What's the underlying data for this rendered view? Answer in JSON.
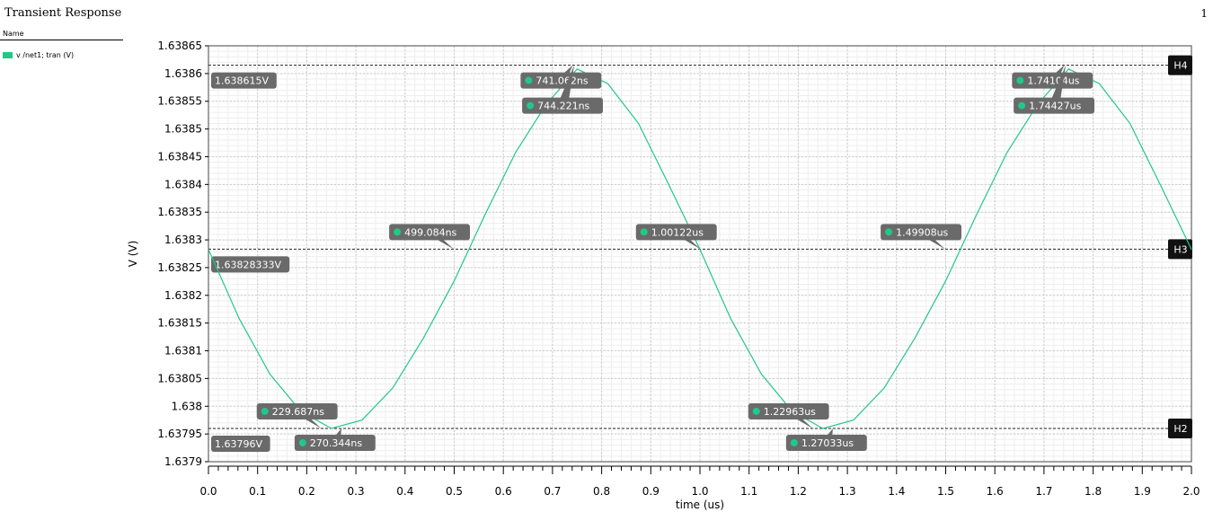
{
  "window": {
    "title": "Transient Response",
    "page_number": "1"
  },
  "legend": {
    "header": "Name",
    "entries": [
      {
        "label": "v /net1; tran (V)",
        "color": "#22c78a"
      }
    ]
  },
  "chart_data": {
    "type": "line",
    "xlabel": "time (us)",
    "ylabel": "V (V)",
    "xlim": [
      0.0,
      2.0
    ],
    "ylim": [
      1.6379,
      1.63865
    ],
    "x_ticks": [
      "0.0",
      "0.1",
      "0.2",
      "0.3",
      "0.4",
      "0.5",
      "0.6",
      "0.7",
      "0.8",
      "0.9",
      "1.0",
      "1.1",
      "1.2",
      "1.3",
      "1.4",
      "1.5",
      "1.6",
      "1.7",
      "1.8",
      "1.9",
      "2.0"
    ],
    "y_ticks": [
      "1.63865",
      "1.6386",
      "1.63855",
      "1.6385",
      "1.63845",
      "1.6384",
      "1.63835",
      "1.6383",
      "1.63825",
      "1.6382",
      "1.63815",
      "1.6381",
      "1.63805",
      "1.638",
      "1.63795",
      "1.6379"
    ],
    "grid": true,
    "series": [
      {
        "name": "v /net1; tran (V)",
        "color": "#22c78a",
        "points": [
          [
            0.0,
            1.638283
          ],
          [
            0.0625,
            1.638158
          ],
          [
            0.125,
            1.638058
          ],
          [
            0.1875,
            1.637991
          ],
          [
            0.25,
            1.63796
          ],
          [
            0.3125,
            1.637975
          ],
          [
            0.375,
            1.638033
          ],
          [
            0.4375,
            1.638123
          ],
          [
            0.5,
            1.638226
          ],
          [
            0.5625,
            1.638345
          ],
          [
            0.625,
            1.638458
          ],
          [
            0.6875,
            1.638545
          ],
          [
            0.75,
            1.638608
          ],
          [
            0.8125,
            1.638582
          ],
          [
            0.875,
            1.63851
          ],
          [
            0.9375,
            1.638398
          ],
          [
            1.0,
            1.638283
          ],
          [
            1.0625,
            1.638158
          ],
          [
            1.125,
            1.638058
          ],
          [
            1.1875,
            1.637991
          ],
          [
            1.25,
            1.63796
          ],
          [
            1.3125,
            1.637975
          ],
          [
            1.375,
            1.638033
          ],
          [
            1.4375,
            1.638123
          ],
          [
            1.5,
            1.638226
          ],
          [
            1.5625,
            1.638345
          ],
          [
            1.625,
            1.638458
          ],
          [
            1.6875,
            1.638545
          ],
          [
            1.75,
            1.638608
          ],
          [
            1.8125,
            1.638582
          ],
          [
            1.875,
            1.63851
          ],
          [
            1.9375,
            1.638398
          ],
          [
            2.0,
            1.638283
          ]
        ]
      }
    ],
    "h_markers": [
      {
        "name": "H4",
        "y": 1.638615,
        "label": "1.638615V"
      },
      {
        "name": "H3",
        "y": 1.63828333,
        "label": "1.63828333V"
      },
      {
        "name": "H2",
        "y": 1.63796,
        "label": "1.63796V"
      }
    ],
    "point_markers": [
      {
        "x": 0.229687,
        "y": 1.63796,
        "label": "229.687ns",
        "pos": "above"
      },
      {
        "x": 0.270344,
        "y": 1.63796,
        "label": "270.344ns",
        "pos": "below"
      },
      {
        "x": 0.499084,
        "y": 1.63828333,
        "label": "499.084ns",
        "pos": "above"
      },
      {
        "x": 0.741062,
        "y": 1.638615,
        "label": "741.062ns",
        "pos": "below1"
      },
      {
        "x": 0.744221,
        "y": 1.638615,
        "label": "744.221ns",
        "pos": "below2"
      },
      {
        "x": 1.00122,
        "y": 1.63828333,
        "label": "1.00122us",
        "pos": "above"
      },
      {
        "x": 1.22963,
        "y": 1.63796,
        "label": "1.22963us",
        "pos": "above"
      },
      {
        "x": 1.27033,
        "y": 1.63796,
        "label": "1.27033us",
        "pos": "below"
      },
      {
        "x": 1.49908,
        "y": 1.63828333,
        "label": "1.49908us",
        "pos": "above"
      },
      {
        "x": 1.74104,
        "y": 1.638615,
        "label": "1.74104us",
        "pos": "below1"
      },
      {
        "x": 1.74427,
        "y": 1.638615,
        "label": "1.74427us",
        "pos": "below2"
      }
    ]
  }
}
